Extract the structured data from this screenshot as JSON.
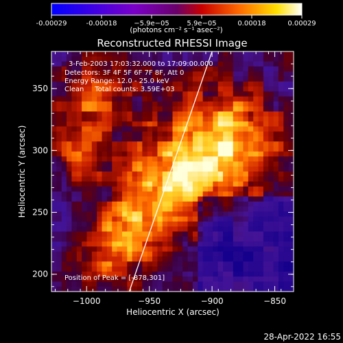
{
  "chart_data": {
    "type": "heatmap",
    "title": "Reconstructed RHESSI Image",
    "xlabel": "Heliocentric X (arcsec)",
    "ylabel": "Heliocentric Y (arcsec)",
    "xlim": [
      -1028,
      -835
    ],
    "ylim": [
      186,
      380
    ],
    "xticks": [
      -1000,
      -950,
      -900,
      -850
    ],
    "xtick_labels": [
      "−1000",
      "−950",
      "−900",
      "−850"
    ],
    "yticks": [
      200,
      250,
      300,
      350
    ],
    "ytick_labels": [
      "200",
      "250",
      "300",
      "350"
    ],
    "colorbar": {
      "range": [
        -0.00029,
        0.00029
      ],
      "tick_labels": [
        "-0.00029",
        "-0.00018",
        "−5.9e−05",
        "5.9e−05",
        "0.00018",
        "0.00029"
      ],
      "units": "(photons cm⁻² s⁻¹ asec⁻²)",
      "colormap": "blue-purple-red-orange-yellow-white"
    },
    "annotations": [
      "3-Feb-2003 17:03:32.000 to 17:09:00.000",
      "Detectors: 3F 4F 5F 6F 7F 8F, Att 0",
      "Energy Range: 12.0 - 25.0 keV",
      "Clean     Total counts: 3.59E+03"
    ],
    "peak_label": "Position of Peak = [-878,301]",
    "peak": {
      "x": -878,
      "y": 301
    },
    "limb_line": [
      [
        -966,
        186
      ],
      [
        -900,
        380
      ]
    ],
    "timestamp": "28-Apr-2022 16:55"
  }
}
